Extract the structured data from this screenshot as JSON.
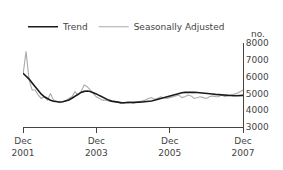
{
  "chart_data": {
    "type": "line",
    "y_label": "no.",
    "categories": [
      "Dec\n2001",
      null,
      null,
      null,
      null,
      null,
      null,
      null,
      null,
      null,
      null,
      null,
      null,
      null,
      null,
      null,
      null,
      null,
      null,
      null,
      null,
      null,
      null,
      null,
      "Dec\n2003",
      null,
      null,
      null,
      null,
      null,
      null,
      null,
      null,
      null,
      null,
      null,
      null,
      null,
      null,
      null,
      null,
      null,
      null,
      null,
      null,
      null,
      null,
      null,
      "Dec\n2005",
      null,
      null,
      null,
      null,
      null,
      null,
      null,
      null,
      null,
      null,
      null,
      null,
      null,
      null,
      null,
      null,
      null,
      null,
      null,
      null,
      null,
      null,
      null,
      "Dec\n2007"
    ],
    "series": [
      {
        "name": "Trend",
        "color": "#1a1a1a",
        "values": [
          6200,
          6050,
          5850,
          5620,
          5380,
          5150,
          4950,
          4800,
          4680,
          4590,
          4530,
          4500,
          4490,
          4500,
          4540,
          4610,
          4710,
          4830,
          4960,
          5060,
          5120,
          5140,
          5110,
          5050,
          4970,
          4870,
          4770,
          4680,
          4600,
          4540,
          4500,
          4470,
          4450,
          4440,
          4440,
          4450,
          4460,
          4470,
          4480,
          4490,
          4500,
          4520,
          4550,
          4590,
          4640,
          4700,
          4760,
          4820,
          4880,
          4930,
          4970,
          5010,
          5040,
          5060,
          5070,
          5070,
          5060,
          5050,
          5040,
          5020,
          5000,
          4980,
          4960,
          4940,
          4920,
          4900,
          4890,
          4880,
          4870,
          4860,
          4860,
          4870,
          4880
        ]
      },
      {
        "name": "Seasonally Adjusted",
        "color": "#aaaaaa",
        "values": [
          6100,
          7500,
          5800,
          5200,
          5200,
          4900,
          4700,
          4800,
          4600,
          5000,
          4600,
          4500,
          4450,
          4500,
          4550,
          4700,
          4800,
          5100,
          4900,
          5100,
          5500,
          5400,
          5200,
          5000,
          4800,
          4700,
          4600,
          4600,
          4550,
          4500,
          4500,
          4500,
          4400,
          4400,
          4500,
          4500,
          4400,
          4450,
          4500,
          4550,
          4600,
          4700,
          4750,
          4650,
          4700,
          4800,
          4750,
          4700,
          4750,
          4800,
          4850,
          4900,
          4750,
          4800,
          4900,
          4850,
          4700,
          4750,
          4800,
          4750,
          4700,
          4800,
          4850,
          4800,
          4800,
          4900,
          4800,
          4850,
          4900,
          4950,
          5000,
          5100,
          5200
        ]
      }
    ],
    "ylim": [
      3000,
      8000
    ],
    "yticks": [
      3000,
      4000,
      5000,
      6000,
      7000,
      8000
    ],
    "grid": false,
    "legend": "upper left"
  }
}
